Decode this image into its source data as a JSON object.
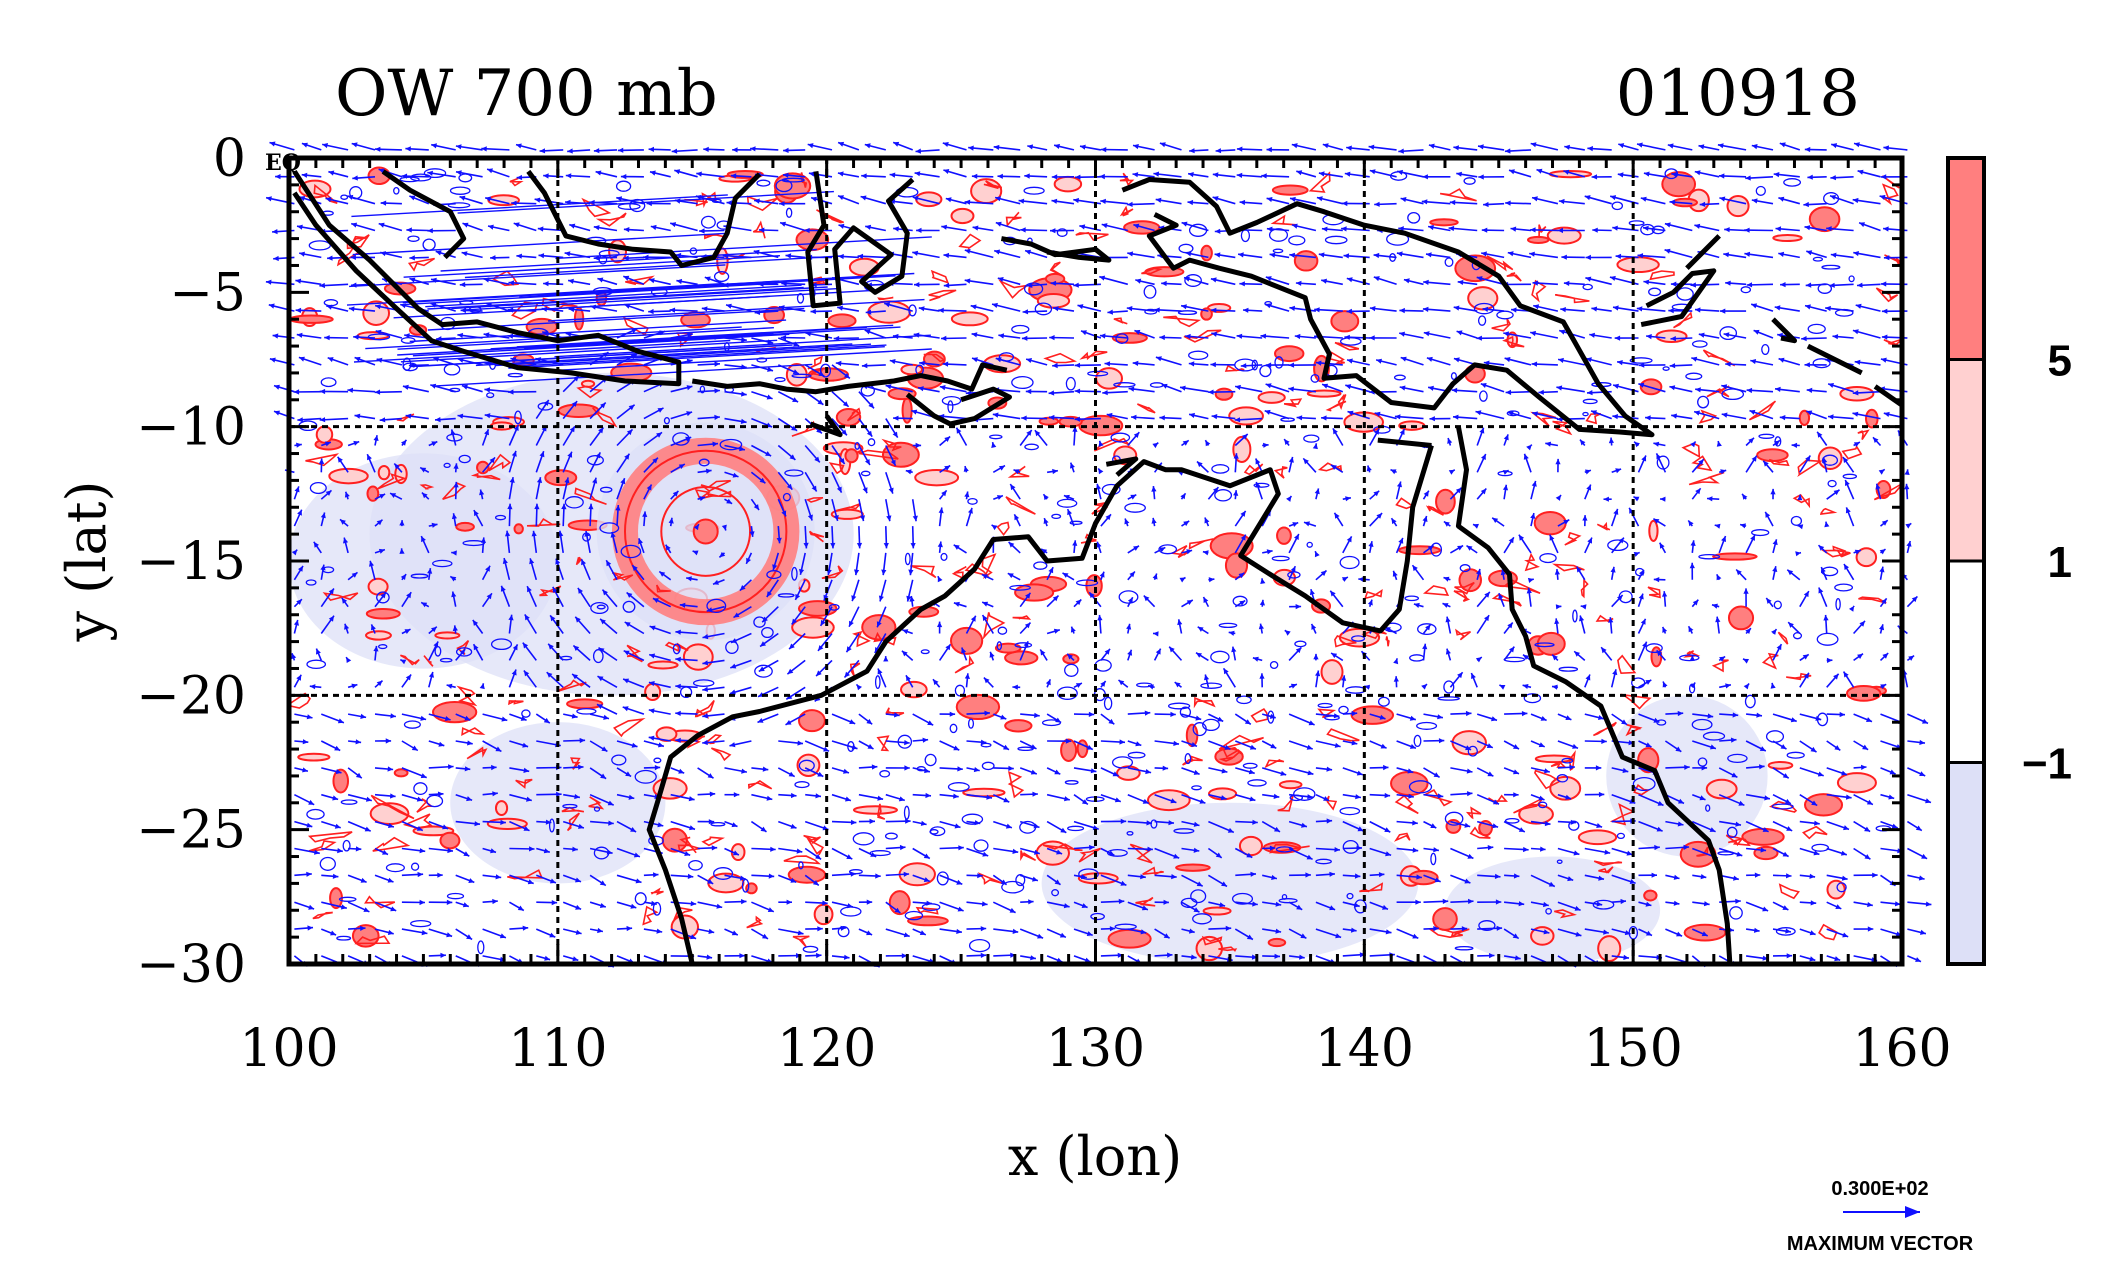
{
  "chart_data": {
    "type": "heatmap",
    "title_left": "OW 700 mb",
    "title_right": "010918",
    "xlabel": "x (lon)",
    "ylabel": "y (lat)",
    "xlim": [
      100,
      160
    ],
    "ylim": [
      -30,
      0
    ],
    "x_ticks": [
      100,
      110,
      120,
      130,
      140,
      150,
      160
    ],
    "y_ticks": [
      0,
      -5,
      -10,
      -15,
      -20,
      -25,
      -30
    ],
    "x_tick_labels": [
      "100",
      "110",
      "120",
      "130",
      "140",
      "150",
      "160"
    ],
    "y_tick_labels": [
      "0",
      "−5",
      "−10",
      "−15",
      "−20",
      "−25",
      "−30"
    ],
    "grid_lon": [
      110,
      120,
      130,
      140,
      150
    ],
    "grid_lat": [
      -10,
      -20
    ],
    "corner_label": "EQ",
    "colorbar": {
      "levels": [
        -1,
        1,
        5
      ],
      "level_labels": [
        "−1",
        "1",
        "5"
      ],
      "colors": [
        "#dde0f7",
        "#ffffff",
        "#ffd0d0",
        "#ff7f7f"
      ]
    },
    "vector_legend": {
      "magnitude_label": "0.300E+02",
      "caption": "MAXIMUM VECTOR"
    },
    "colors": {
      "contour": "#ff2020",
      "vector": "#1010ff",
      "coast": "#000000",
      "fill_positive_strong": "#ff7f7f",
      "fill_positive": "#ffd0d0",
      "fill_negative": "#dde0f7"
    },
    "coastlines": [
      [
        [
          100.2,
          -0.5
        ],
        [
          101.5,
          -2.5
        ],
        [
          103,
          -3.8
        ],
        [
          104.8,
          -5.6
        ],
        [
          105.7,
          -6.2
        ],
        [
          107,
          -6.1
        ],
        [
          108.5,
          -6.5
        ],
        [
          110,
          -6.8
        ],
        [
          111.5,
          -6.6
        ],
        [
          113,
          -7.2
        ],
        [
          114.5,
          -7.6
        ],
        [
          114.5,
          -8.4
        ],
        [
          112.5,
          -8.3
        ],
        [
          110.5,
          -8
        ],
        [
          108.5,
          -7.8
        ],
        [
          106.5,
          -7.2
        ],
        [
          105.3,
          -6.8
        ],
        [
          104,
          -5.6
        ],
        [
          102.5,
          -4.2
        ],
        [
          101,
          -2.5
        ],
        [
          100.2,
          -1.3
        ]
      ],
      [
        [
          103.5,
          -0.5
        ],
        [
          104.5,
          -1.2
        ],
        [
          106,
          -2
        ],
        [
          106.5,
          -3
        ],
        [
          105.8,
          -3.7
        ]
      ],
      [
        [
          108.9,
          -0.5
        ],
        [
          109.5,
          -1.3
        ],
        [
          110.3,
          -2.9
        ],
        [
          111.5,
          -3.2
        ],
        [
          112.8,
          -3.4
        ],
        [
          114.2,
          -3.5
        ],
        [
          114.6,
          -4
        ],
        [
          115.8,
          -3.7
        ],
        [
          116.3,
          -2.8
        ],
        [
          116.6,
          -1.5
        ],
        [
          117.5,
          -0.6
        ]
      ],
      [
        [
          115,
          -8.3
        ],
        [
          116.3,
          -8.5
        ],
        [
          117.5,
          -8.4
        ],
        [
          118.5,
          -8.6
        ],
        [
          119.6,
          -8.7
        ],
        [
          120.8,
          -8.5
        ],
        [
          122.5,
          -8.3
        ],
        [
          123.5,
          -8.1
        ],
        [
          124.5,
          -8.3
        ],
        [
          125.4,
          -8.6
        ],
        [
          125.8,
          -7.7
        ],
        [
          126.7,
          -7.9
        ]
      ],
      [
        [
          123,
          -8.8
        ],
        [
          124,
          -9.6
        ],
        [
          124.6,
          -9.9
        ],
        [
          125.5,
          -9.7
        ],
        [
          126.8,
          -8.9
        ],
        [
          126.2,
          -8.6
        ],
        [
          125,
          -9
        ]
      ],
      [
        [
          119.4,
          -9.9
        ],
        [
          120.5,
          -10.3
        ],
        [
          120,
          -9.6
        ]
      ],
      [
        [
          119.6,
          -0.5
        ],
        [
          119.9,
          -2.5
        ],
        [
          119.3,
          -3.5
        ],
        [
          119.5,
          -5.5
        ],
        [
          120.5,
          -5.4
        ],
        [
          120.3,
          -3.4
        ],
        [
          121,
          -2.6
        ],
        [
          122.4,
          -3.6
        ],
        [
          121.3,
          -4.6
        ],
        [
          121.8,
          -5
        ],
        [
          122.8,
          -4.4
        ],
        [
          123,
          -2.8
        ],
        [
          122.3,
          -1.6
        ],
        [
          123.2,
          -0.8
        ]
      ],
      [
        [
          126.5,
          -3
        ],
        [
          127.6,
          -3.2
        ],
        [
          128.5,
          -3.6
        ],
        [
          130,
          -3.4
        ],
        [
          130.5,
          -3.8
        ],
        [
          129.4,
          -3.7
        ],
        [
          128.2,
          -3.5
        ]
      ],
      [
        [
          131,
          -1.2
        ],
        [
          132,
          -0.8
        ],
        [
          133.5,
          -0.9
        ],
        [
          134.5,
          -1.8
        ],
        [
          135,
          -2.8
        ],
        [
          136,
          -2.4
        ],
        [
          137.5,
          -1.7
        ],
        [
          138.5,
          -2
        ],
        [
          140,
          -2.5
        ],
        [
          141.5,
          -2.8
        ],
        [
          143.5,
          -3.5
        ],
        [
          145,
          -4.4
        ],
        [
          145.8,
          -5.5
        ],
        [
          147.4,
          -6.1
        ],
        [
          147.8,
          -6.8
        ],
        [
          148.7,
          -8.4
        ],
        [
          149.7,
          -9.6
        ],
        [
          150.7,
          -10.3
        ],
        [
          149.5,
          -10.2
        ],
        [
          148,
          -10.1
        ],
        [
          146.5,
          -8.9
        ],
        [
          145.3,
          -7.9
        ],
        [
          144.1,
          -7.7
        ],
        [
          143.3,
          -8.4
        ],
        [
          142.6,
          -9.3
        ],
        [
          141,
          -9.1
        ],
        [
          139.7,
          -8.1
        ],
        [
          138.5,
          -8.2
        ],
        [
          138.7,
          -7.3
        ],
        [
          138,
          -6
        ],
        [
          137.8,
          -5.2
        ],
        [
          135.8,
          -4.4
        ],
        [
          134.6,
          -4.1
        ],
        [
          133.5,
          -3.8
        ],
        [
          132.9,
          -4.1
        ],
        [
          132,
          -2.9
        ],
        [
          133,
          -2.5
        ],
        [
          132.2,
          -2.1
        ]
      ],
      [
        [
          150.5,
          -5.5
        ],
        [
          151.5,
          -5
        ],
        [
          152.2,
          -4.3
        ],
        [
          153,
          -4.2
        ],
        [
          151.8,
          -5.9
        ],
        [
          150.3,
          -6.2
        ]
      ],
      [
        [
          153.2,
          -2.9
        ],
        [
          152.4,
          -3.7
        ],
        [
          152,
          -4.1
        ]
      ],
      [
        [
          155.2,
          -6
        ],
        [
          156,
          -6.8
        ],
        [
          155.5,
          -6.7
        ]
      ],
      [
        [
          156.5,
          -7
        ],
        [
          158.5,
          -8
        ]
      ],
      [
        [
          159,
          -8.5
        ],
        [
          160,
          -9.2
        ]
      ],
      [
        [
          143.5,
          -10
        ],
        [
          143.8,
          -11.6
        ],
        [
          143.5,
          -13.7
        ],
        [
          144.6,
          -14.5
        ],
        [
          145.4,
          -15.5
        ],
        [
          145.5,
          -16.8
        ],
        [
          146,
          -17.8
        ],
        [
          146.3,
          -18.9
        ],
        [
          147.5,
          -19.5
        ],
        [
          148.8,
          -20.4
        ],
        [
          149.6,
          -22.3
        ],
        [
          150.8,
          -22.8
        ],
        [
          151.3,
          -24
        ],
        [
          152.8,
          -25.4
        ],
        [
          153.2,
          -26.5
        ],
        [
          153.5,
          -28.5
        ],
        [
          153.6,
          -30
        ]
      ],
      [
        [
          142.5,
          -10.7
        ],
        [
          141.8,
          -13
        ],
        [
          141.6,
          -15
        ],
        [
          141.3,
          -16.8
        ],
        [
          140.6,
          -17.6
        ],
        [
          139.2,
          -17.3
        ],
        [
          137.8,
          -16.3
        ],
        [
          136.5,
          -15.5
        ],
        [
          135.4,
          -14.8
        ],
        [
          136.8,
          -12.5
        ],
        [
          136.5,
          -11.6
        ],
        [
          135,
          -12.2
        ],
        [
          133.2,
          -11.6
        ],
        [
          132.6,
          -11.6
        ],
        [
          131.8,
          -11.3
        ],
        [
          130.8,
          -12.2
        ],
        [
          130,
          -13.6
        ],
        [
          129.5,
          -14.9
        ],
        [
          128.2,
          -15
        ],
        [
          127.5,
          -14.1
        ],
        [
          126.2,
          -14.2
        ],
        [
          125.5,
          -15.3
        ],
        [
          124.4,
          -16.3
        ],
        [
          123.5,
          -16.8
        ],
        [
          122.2,
          -18
        ],
        [
          121.5,
          -19.1
        ],
        [
          119.8,
          -20
        ],
        [
          117.5,
          -20.6
        ],
        [
          116.5,
          -20.8
        ],
        [
          115.2,
          -21.5
        ],
        [
          114.2,
          -22.3
        ],
        [
          113.7,
          -24
        ],
        [
          113.4,
          -25
        ],
        [
          114,
          -26.5
        ],
        [
          114.6,
          -28.3
        ],
        [
          115,
          -30
        ]
      ],
      [
        [
          130.4,
          -11.4
        ],
        [
          131.5,
          -11.2
        ],
        [
          130.8,
          -11.8
        ]
      ],
      [
        [
          140.5,
          -10.5
        ],
        [
          142.5,
          -10.7
        ]
      ]
    ],
    "cyclone": {
      "center": [
        115.5,
        -13.9
      ],
      "radius_deg": 3.0
    }
  }
}
